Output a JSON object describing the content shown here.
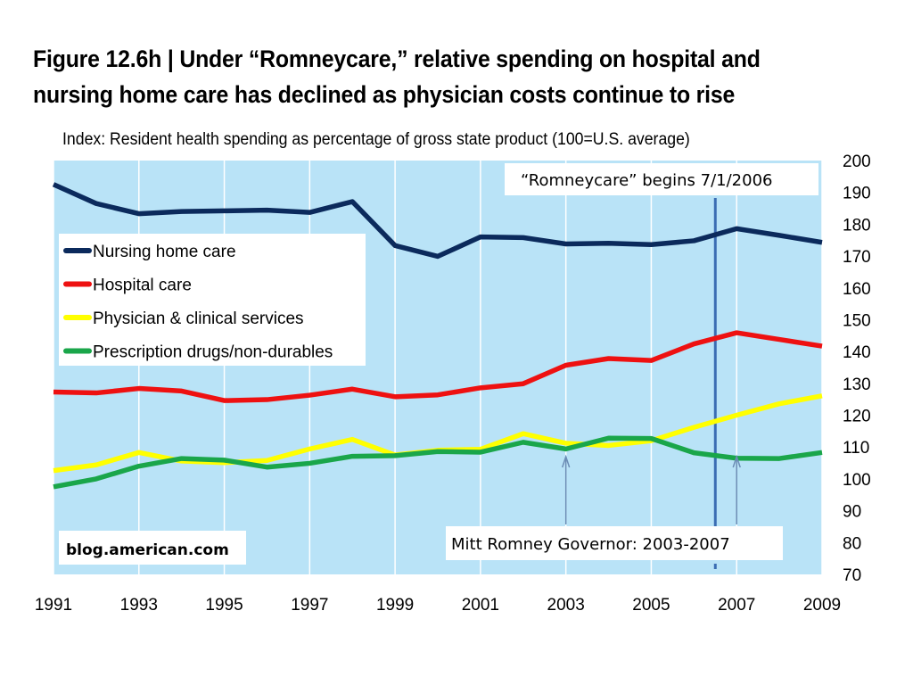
{
  "title": "Figure 12.6h | Under “Romneycare,” relative spending on hospital and nursing home care has declined as physician costs continue to rise",
  "colors": {
    "plot_background": "#b9e3f7",
    "grid": "#ffffff",
    "nursing": "#0b2a5c",
    "hospital": "#ee1111",
    "physician": "#ffff00",
    "drugs": "#1aa64a",
    "event_line": "#3b6db3",
    "arrow": "#6b8db5"
  },
  "chart_data": {
    "type": "line",
    "subtitle": "Index: Resident health spending as percentage of gross state product (100=U.S. average)",
    "xlim": [
      1991,
      2009
    ],
    "ylim": [
      70,
      200
    ],
    "x_ticks": [
      "1991",
      "1993",
      "1995",
      "1997",
      "1999",
      "2001",
      "2003",
      "2005",
      "2007",
      "2009"
    ],
    "y_ticks": [
      "200",
      "190",
      "180",
      "170",
      "160",
      "150",
      "140",
      "130",
      "120",
      "110",
      "100",
      "90",
      "80",
      "70"
    ],
    "y_axis_side": "right",
    "grid": "vertical",
    "legend_position": "top-left",
    "x": [
      1991,
      1992,
      1993,
      1994,
      1995,
      1996,
      1997,
      1998,
      1999,
      2000,
      2001,
      2002,
      2003,
      2004,
      2005,
      2006,
      2007,
      2008,
      2009
    ],
    "series": [
      {
        "name": "Nursing home care",
        "color_key": "nursing",
        "values": [
          192.5,
          186.5,
          183.3,
          184,
          184.2,
          184.4,
          183.7,
          187.1,
          173.3,
          169.9,
          176,
          175.8,
          173.8,
          174,
          173.6,
          174.8,
          178.6,
          176.5,
          174.3
        ]
      },
      {
        "name": "Hospital care",
        "color_key": "hospital",
        "values": [
          127.3,
          127,
          128.4,
          127.6,
          124.6,
          124.9,
          126.3,
          128.2,
          125.8,
          126.4,
          128.6,
          129.9,
          135.7,
          137.8,
          137.2,
          142.4,
          145.9,
          143.8,
          141.7
        ]
      },
      {
        "name": "Physician & clinical services",
        "color_key": "physician",
        "values": [
          102.6,
          104.4,
          108.3,
          105.6,
          105.1,
          105.8,
          109.4,
          112.4,
          107.5,
          109,
          109.3,
          114.2,
          111.2,
          110.5,
          112,
          116.2,
          120,
          123.6,
          126.1
        ]
      },
      {
        "name": "Prescription drugs/non-durables",
        "color_key": "drugs",
        "values": [
          97.5,
          100,
          104,
          106.4,
          105.9,
          103.7,
          104.9,
          107.1,
          107.3,
          108.6,
          108.4,
          111.5,
          109.4,
          112.8,
          112.7,
          108.2,
          106.5,
          106.4,
          108.3
        ]
      }
    ],
    "annotations": {
      "romneycare_label": "“Romneycare” begins 7/1/2006",
      "romneycare_x": 2006.5,
      "governor_label": "Mitt Romney Governor: 2003-2007",
      "governor_start": 2003,
      "governor_end": 2007
    },
    "source": "blog.american.com"
  }
}
